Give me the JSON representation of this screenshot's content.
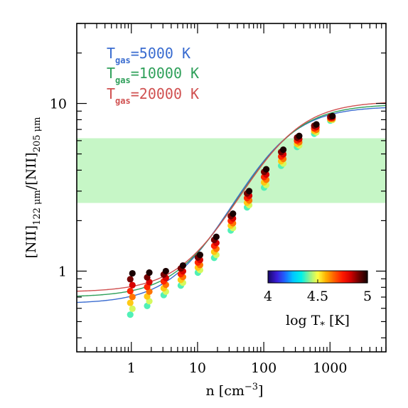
{
  "chart_data": {
    "type": "line",
    "xlabel": "n [cm⁻³]",
    "xlabel_main": "n [cm",
    "xlabel_sup": "−3",
    "xlabel_end": "]",
    "ylabel_parts": {
      "a": "[NII]",
      "a_sub": "122 μm",
      "b": "/[NII]",
      "b_sub": "205 μm"
    },
    "x_scale": "log",
    "y_scale": "log",
    "xlim": [
      0.15,
      7000
    ],
    "ylim": [
      0.33,
      30
    ],
    "x_ticks": [
      {
        "value": 1,
        "label": "1"
      },
      {
        "value": 10,
        "label": "10"
      },
      {
        "value": 100,
        "label": "100"
      },
      {
        "value": 1000,
        "label": "1000"
      }
    ],
    "y_ticks": [
      {
        "value": 1,
        "label": "1"
      },
      {
        "value": 10,
        "label": "10"
      }
    ],
    "observed_band": {
      "y_low": 2.55,
      "y_high": 6.2,
      "color": "#c6f6c6"
    },
    "series": [
      {
        "name": "T_gas=5000 K",
        "label_main": "T",
        "label_sub": "gas",
        "label_rest": "=5000 K",
        "color": "#3a6cd0",
        "low_limit": 0.64,
        "high_limit": 9.6,
        "n_crit": 130
      },
      {
        "name": "T_gas=10000 K",
        "label_main": "T",
        "label_sub": "gas",
        "label_rest": "=10000 K",
        "color": "#2fa05a",
        "low_limit": 0.7,
        "high_limit": 9.9,
        "n_crit": 145
      },
      {
        "name": "T_gas=20000 K",
        "label_main": "T",
        "label_sub": "gas",
        "label_rest": "=20000 K",
        "color": "#d05050",
        "low_limit": 0.75,
        "high_limit": 10.3,
        "n_crit": 160
      }
    ],
    "scatter_columns": [
      {
        "n": 1.0,
        "y_min": 0.55,
        "y_max": 0.97
      },
      {
        "n": 1.8,
        "y_min": 0.62,
        "y_max": 0.98
      },
      {
        "n": 3.2,
        "y_min": 0.72,
        "y_max": 1.0
      },
      {
        "n": 5.8,
        "y_min": 0.82,
        "y_max": 1.08
      },
      {
        "n": 10.5,
        "y_min": 0.98,
        "y_max": 1.25
      },
      {
        "n": 18.5,
        "y_min": 1.2,
        "y_max": 1.6
      },
      {
        "n": 33,
        "y_min": 1.75,
        "y_max": 2.2
      },
      {
        "n": 58,
        "y_min": 2.4,
        "y_max": 3.0
      },
      {
        "n": 105,
        "y_min": 3.15,
        "y_max": 4.05
      },
      {
        "n": 190,
        "y_min": 4.25,
        "y_max": 5.3
      },
      {
        "n": 330,
        "y_min": 5.5,
        "y_max": 6.4
      },
      {
        "n": 600,
        "y_min": 6.6,
        "y_max": 7.5
      },
      {
        "n": 1050,
        "y_min": 7.9,
        "y_max": 8.4
      }
    ],
    "colorbar": {
      "label_main": "log T",
      "label_sub": "*",
      "label_unit": " [K]",
      "min": 4,
      "max": 5,
      "ticks": [
        {
          "value": 4,
          "label": "4"
        },
        {
          "value": 4.5,
          "label": "4.5"
        },
        {
          "value": 5,
          "label": "5"
        }
      ],
      "colors": [
        "#1a0a70",
        "#3a1cd8",
        "#1e66ff",
        "#00c8ff",
        "#00f0e8",
        "#90f090",
        "#ffff40",
        "#ffb000",
        "#ff6000",
        "#ff1a00",
        "#d40000",
        "#700000",
        "#1a0000"
      ]
    }
  }
}
